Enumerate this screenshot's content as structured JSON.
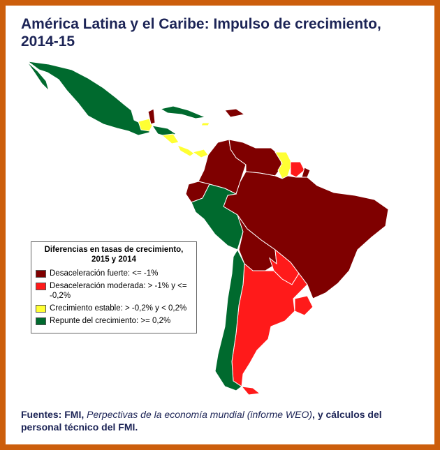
{
  "header": {
    "title": "América Latina y el Caribe: Impulso de crecimiento, 2014-15"
  },
  "legend": {
    "title": "Diferencias en tasas de crecimiento, 2015 y 2014",
    "items": [
      {
        "label": "Desaceleración fuerte: <= -1%",
        "color": "#7f0000"
      },
      {
        "label": "Desaceleración moderada: > -1% y <= -0,2%",
        "color": "#ff1a1a"
      },
      {
        "label": "Crecimiento estable: > -0,2% y < 0,2%",
        "color": "#ffff33"
      },
      {
        "label": "Repunte del crecimiento: >= 0,2%",
        "color": "#006a2e"
      }
    ]
  },
  "source": {
    "lead": "Fuentes: FMI,",
    "publication": "Perpectivas de la economía mundial (informe WEO)",
    "rest": ", y cálculos del personal técnico del FMI."
  }
}
